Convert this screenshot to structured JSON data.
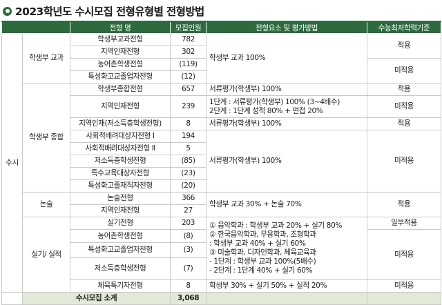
{
  "title": "2023학년도 수시모집 전형유형별 전형방법",
  "header": {
    "type": "전형 명",
    "quota": "모집인원",
    "method": "전형요소 및 평가방법",
    "minimum": "수능최저학력기준"
  },
  "session": "수시",
  "groups": {
    "g1": "학생부 교과",
    "g2": "학생부 종합",
    "g3": "논술",
    "g4": "실기/ 실적"
  },
  "rows": [
    {
      "name": "학생부교과전형",
      "quota": "782"
    },
    {
      "name": "지역인재전형",
      "quota": "302"
    },
    {
      "name": "농어촌학생전형",
      "quota": "(119)"
    },
    {
      "name": "특성화고교졸업자전형",
      "quota": "(12)"
    },
    {
      "name": "학생부종합전형",
      "quota": "657"
    },
    {
      "name": "지역인재전형",
      "quota": "239"
    },
    {
      "name": "지역인재(저소득층학생전형)",
      "quota": "8"
    },
    {
      "name": "사회적배려대상자전형 Ⅰ",
      "quota": "194"
    },
    {
      "name": "사회적배려대상자전형 Ⅱ",
      "quota": "5"
    },
    {
      "name": "저소득층학생전형",
      "quota": "(85)"
    },
    {
      "name": "특수교육대상자전형",
      "quota": "(23)"
    },
    {
      "name": "특성화고졸재직자전형",
      "quota": "(20)"
    },
    {
      "name": "논술전형",
      "quota": "366"
    },
    {
      "name": "지역인재전형",
      "quota": "27"
    },
    {
      "name": "실기전형",
      "quota": "203"
    },
    {
      "name": "농어촌학생전형",
      "quota": "(8)"
    },
    {
      "name": "특성화고교졸업자전형",
      "quota": "(3)"
    },
    {
      "name": "저소득층학생전형",
      "quota": "(7)"
    },
    {
      "name": "체육특기자전형",
      "quota": "8"
    }
  ],
  "methods": {
    "m1": "학생부 교과 100%",
    "m2": "서류평가(학생부) 100%",
    "m3a": "1단계 : 서류평가(학생부) 100% (3~4배수)",
    "m3b": "2단계 : 1단계 성적 80% + 면접 20%",
    "m4": "서류평가(학생부) 100%",
    "m5": "서류평가(학생부) 100%",
    "m6": "학생부 교과 30% + 논술 70%",
    "m7": [
      "① 음악학과 : 학생부 교과 20% + 실기 80%",
      "② 한국음악학과, 무용학과, 조형학과",
      " : 학생부 교과 40% + 실기 60%",
      "③ 미술학과, 디자인학과, 체육교육과",
      " - 1단계 : 학생부 교과 100%(5배수)",
      " - 2단계 : 1단계 40% + 실기 60%"
    ],
    "m8": "학생부 30% + 실기 50% + 실적 20%"
  },
  "minimums": {
    "apply": "적용",
    "not_apply": "미적용",
    "partial": "일부적용"
  },
  "total": {
    "label": "수시모집 소계",
    "value": "3,068"
  }
}
